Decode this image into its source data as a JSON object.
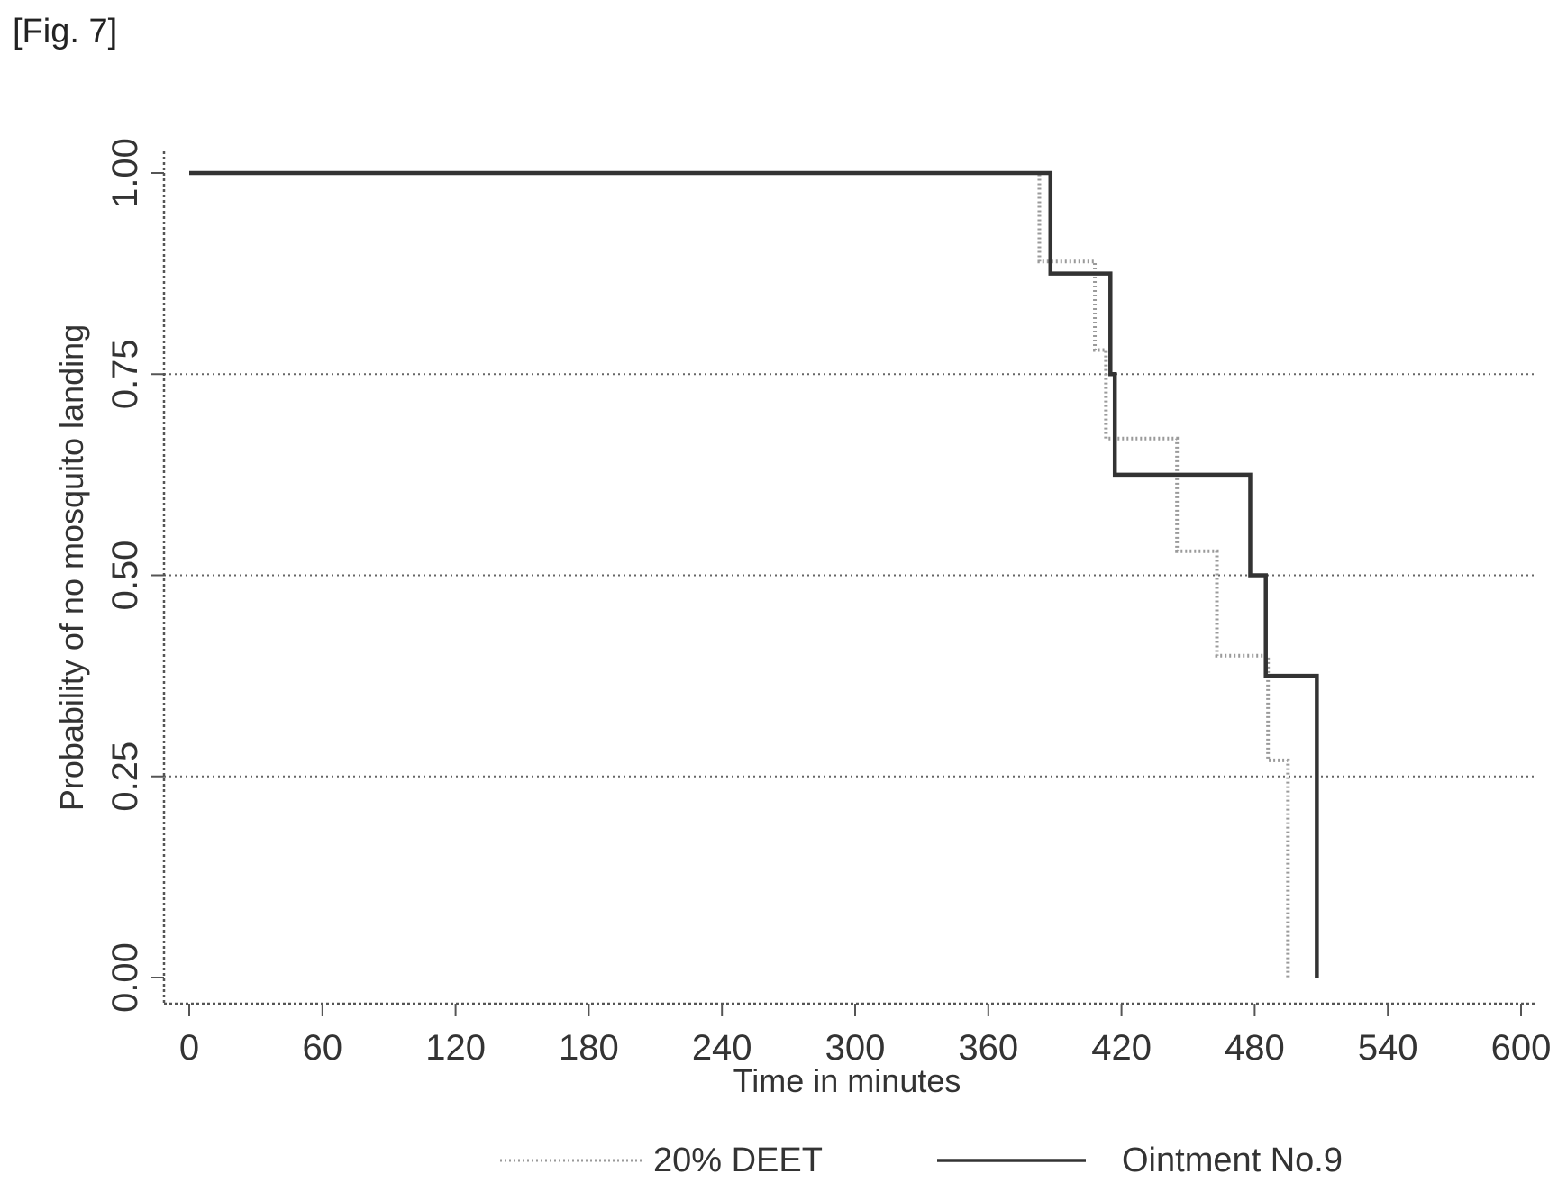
{
  "figure_label": "[Fig. 7]",
  "chart_data": {
    "type": "line",
    "subtype": "step (Kaplan-Meier)",
    "xlabel": "Time in minutes",
    "ylabel": "Probability of no mosquito landing",
    "xlim": [
      0,
      600
    ],
    "ylim": [
      0,
      1
    ],
    "x_ticks": [
      0,
      60,
      120,
      180,
      240,
      300,
      360,
      420,
      480,
      540,
      600
    ],
    "x_tick_labels": [
      "0",
      "60",
      "120",
      "180",
      "240",
      "300",
      "360",
      "420",
      "480",
      "540",
      "600"
    ],
    "y_ticks": [
      0,
      0.25,
      0.5,
      0.75,
      1.0
    ],
    "y_tick_labels": [
      "0.00",
      "0.25",
      "0.50",
      "0.75",
      "1.00"
    ],
    "grid": "horizontal dotted at 0.25, 0.50, 0.75",
    "legend_position": "bottom",
    "series": [
      {
        "name": "20% DEET",
        "style": "dotted",
        "color": "#9a9a9a",
        "x": [
          0,
          377,
          383,
          408,
          413,
          435,
          445,
          463,
          486,
          495,
          495
        ],
        "y": [
          1.0,
          1.0,
          0.89,
          0.78,
          0.67,
          0.67,
          0.53,
          0.4,
          0.27,
          0.13,
          0.0
        ]
      },
      {
        "name": "Ointment No.9",
        "style": "solid",
        "color": "#333333",
        "x": [
          0,
          375,
          388,
          415,
          417,
          478,
          485,
          508,
          508
        ],
        "y": [
          1.0,
          1.0,
          0.875,
          0.75,
          0.625,
          0.5,
          0.375,
          0.125,
          0.0
        ]
      }
    ]
  }
}
